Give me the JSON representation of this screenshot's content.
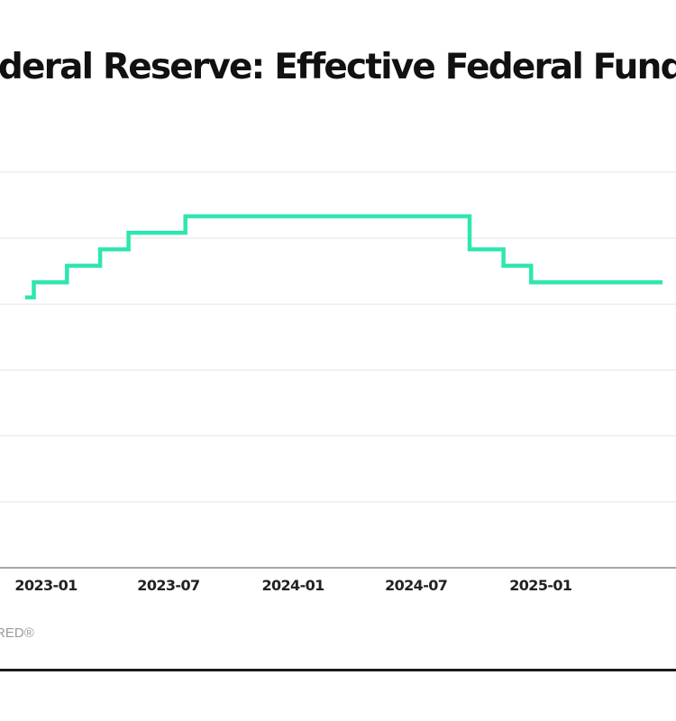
{
  "chart_data": {
    "type": "line",
    "title": "Federal Reserve: Effective Federal Funds Rate",
    "source": "Source: FRED®",
    "line_color": "#2ee6b0",
    "grid": true,
    "x_tick_labels": [
      "2023-01",
      "2023-07",
      "2024-01",
      "2024-07",
      "2025-01"
    ],
    "series": [
      {
        "points": [
          {
            "x": "2022-12-01",
            "y": 4.1
          },
          {
            "x": "2022-12-14",
            "y": 4.33
          },
          {
            "x": "2023-02-01",
            "y": 4.58
          },
          {
            "x": "2023-03-22",
            "y": 4.83
          },
          {
            "x": "2023-05-03",
            "y": 5.08
          },
          {
            "x": "2023-07-26",
            "y": 5.33
          },
          {
            "x": "2024-09-18",
            "y": 4.83
          },
          {
            "x": "2024-11-07",
            "y": 4.58
          },
          {
            "x": "2024-12-18",
            "y": 4.33
          },
          {
            "x": "2025-06-30",
            "y": 4.33
          }
        ]
      }
    ]
  }
}
